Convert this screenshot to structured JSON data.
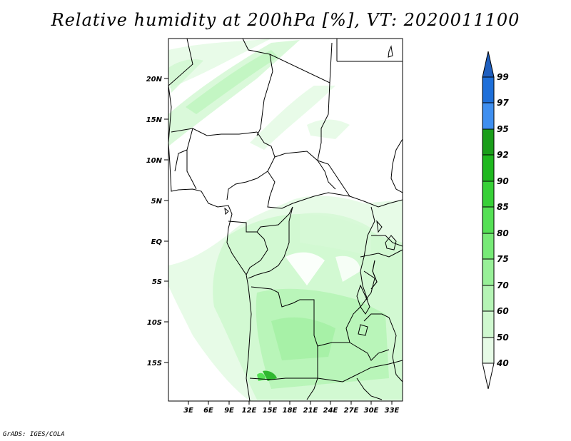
{
  "title": "Relative humidity at 200hPa [%], VT: 2020011100",
  "footer": "GrADS: IGES/COLA",
  "map": {
    "lon_range": [
      0,
      34.5
    ],
    "lat_range": [
      -19.5,
      24.5
    ],
    "lat_ticks": [
      "20N",
      "15N",
      "10N",
      "5N",
      "EQ",
      "5S",
      "10S",
      "15S"
    ],
    "lon_ticks": [
      "3E",
      "6E",
      "9E",
      "12E",
      "15E",
      "18E",
      "21E",
      "24E",
      "27E",
      "30E",
      "33E"
    ]
  },
  "colorbar": {
    "levels": [
      "99",
      "97",
      "95",
      "92",
      "90",
      "85",
      "80",
      "75",
      "70",
      "60",
      "50",
      "40"
    ],
    "colors": [
      "#1e6fd9",
      "#3f8ff0",
      "#1a9e1a",
      "#1fb81f",
      "#37d037",
      "#55e055",
      "#77ea77",
      "#98f098",
      "#b5f4b5",
      "#cff8cf",
      "#e6fbe6"
    ],
    "top_arrow_color": "#1f5fbf"
  }
}
